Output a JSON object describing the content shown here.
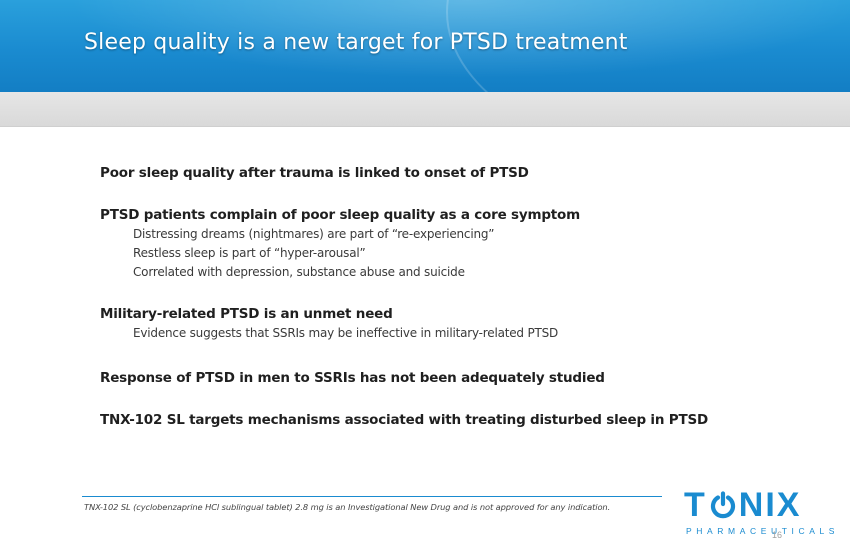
{
  "slide": {
    "title": "Sleep quality is a new target for PTSD treatment",
    "bullets": [
      {
        "text": "Poor sleep quality after trauma is linked to onset of PTSD",
        "subs": []
      },
      {
        "text": "PTSD patients complain of poor sleep quality as a core symptom",
        "subs": [
          "Distressing dreams (nightmares) are part of “re-experiencing”",
          "Restless sleep is part of “hyper-arousal”",
          "Correlated with depression, substance abuse and suicide"
        ]
      },
      {
        "text": "Military-related PTSD is an unmet need",
        "subs": [
          "Evidence suggests that SSRIs may be ineffective in military-related PTSD"
        ]
      },
      {
        "text": "Response of PTSD in men to SSRIs has not been adequately studied",
        "subs": []
      },
      {
        "text": "TNX-102 SL targets mechanisms associated with treating disturbed sleep in PTSD",
        "subs": []
      }
    ],
    "footnote": "TNX-102 SL (cyclobenzaprine HCl sublingual tablet) 2.8 mg is an Investigational New Drug and is not approved for any indication.",
    "page_number": "16"
  },
  "logo": {
    "word_left": "T",
    "word_right": "NIX",
    "subtitle": "PHARMACEUTICALS",
    "icon": "power-o-icon",
    "color": "#1a8bd0"
  },
  "colors": {
    "header_blue": "#1a8bd0",
    "band_grey": "#dddddd",
    "text_dark": "#1f1f1f"
  }
}
